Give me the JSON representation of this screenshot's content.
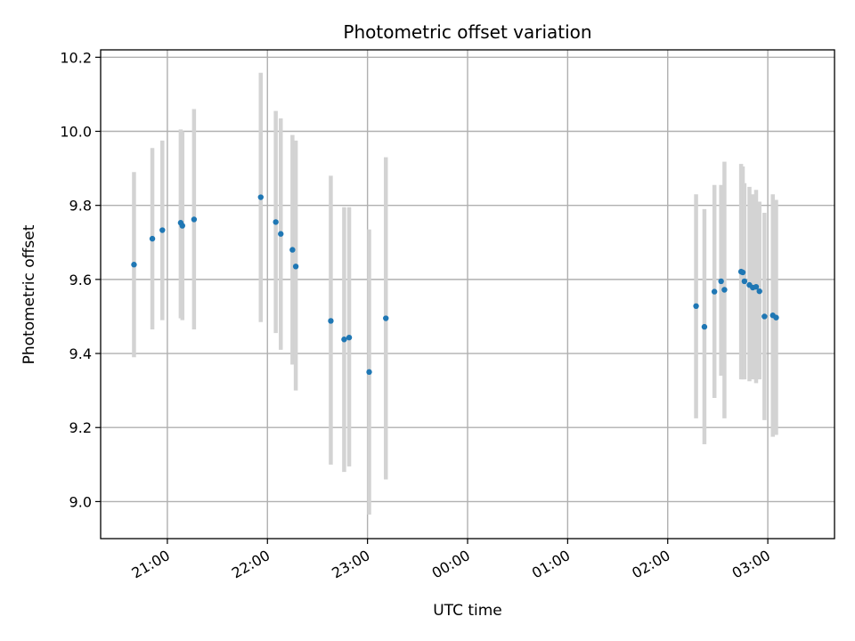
{
  "chart_data": {
    "type": "scatter",
    "title": "Photometric offset variation",
    "xlabel": "UTC time",
    "ylabel": "Photometric offset",
    "xlim": [
      "20:20",
      "03:40"
    ],
    "ylim": [
      8.9,
      10.22
    ],
    "x_ticks": [
      "21:00",
      "22:00",
      "23:00",
      "00:00",
      "01:00",
      "02:00",
      "03:00"
    ],
    "y_ticks": [
      "9.0",
      "9.2",
      "9.4",
      "9.6",
      "9.8",
      "10.0",
      "10.2"
    ],
    "grid": true,
    "error_bar_color": "#d3d3d3",
    "marker_color": "#1f77b4",
    "points": [
      {
        "t": "20:40",
        "y": 9.64,
        "lo": 9.39,
        "hi": 9.89
      },
      {
        "t": "20:51",
        "y": 9.71,
        "lo": 9.465,
        "hi": 9.955
      },
      {
        "t": "20:57",
        "y": 9.733,
        "lo": 9.49,
        "hi": 9.975
      },
      {
        "t": "21:08",
        "y": 9.753,
        "lo": 9.495,
        "hi": 10.005
      },
      {
        "t": "21:09",
        "y": 9.745,
        "lo": 9.49,
        "hi": 10.0
      },
      {
        "t": "21:16",
        "y": 9.762,
        "lo": 9.465,
        "hi": 10.06
      },
      {
        "t": "21:56",
        "y": 9.822,
        "lo": 9.485,
        "hi": 10.158
      },
      {
        "t": "22:05",
        "y": 9.755,
        "lo": 9.455,
        "hi": 10.055
      },
      {
        "t": "22:08",
        "y": 9.723,
        "lo": 9.41,
        "hi": 10.035
      },
      {
        "t": "22:15",
        "y": 9.68,
        "lo": 9.37,
        "hi": 9.99
      },
      {
        "t": "22:17",
        "y": 9.635,
        "lo": 9.3,
        "hi": 9.975
      },
      {
        "t": "22:38",
        "y": 9.488,
        "lo": 9.1,
        "hi": 9.88
      },
      {
        "t": "22:46",
        "y": 9.438,
        "lo": 9.08,
        "hi": 9.795
      },
      {
        "t": "22:49",
        "y": 9.443,
        "lo": 9.095,
        "hi": 9.795
      },
      {
        "t": "23:01",
        "y": 9.35,
        "lo": 8.965,
        "hi": 9.735
      },
      {
        "t": "23:11",
        "y": 9.495,
        "lo": 9.06,
        "hi": 9.93
      },
      {
        "t": "02:17",
        "y": 9.528,
        "lo": 9.225,
        "hi": 9.83
      },
      {
        "t": "02:22",
        "y": 9.472,
        "lo": 9.155,
        "hi": 9.79
      },
      {
        "t": "02:28",
        "y": 9.567,
        "lo": 9.28,
        "hi": 9.855
      },
      {
        "t": "02:32",
        "y": 9.595,
        "lo": 9.34,
        "hi": 9.855
      },
      {
        "t": "02:34",
        "y": 9.572,
        "lo": 9.225,
        "hi": 9.918
      },
      {
        "t": "02:44",
        "y": 9.621,
        "lo": 9.33,
        "hi": 9.912
      },
      {
        "t": "02:45",
        "y": 9.619,
        "lo": 9.33,
        "hi": 9.905
      },
      {
        "t": "02:46",
        "y": 9.595,
        "lo": 9.33,
        "hi": 9.86
      },
      {
        "t": "02:49",
        "y": 9.585,
        "lo": 9.325,
        "hi": 9.85
      },
      {
        "t": "02:51",
        "y": 9.578,
        "lo": 9.33,
        "hi": 9.83
      },
      {
        "t": "02:53",
        "y": 9.58,
        "lo": 9.32,
        "hi": 9.842
      },
      {
        "t": "02:55",
        "y": 9.568,
        "lo": 9.33,
        "hi": 9.81
      },
      {
        "t": "02:58",
        "y": 9.5,
        "lo": 9.22,
        "hi": 9.78
      },
      {
        "t": "03:03",
        "y": 9.503,
        "lo": 9.175,
        "hi": 9.83
      },
      {
        "t": "03:05",
        "y": 9.497,
        "lo": 9.18,
        "hi": 9.815
      }
    ]
  }
}
